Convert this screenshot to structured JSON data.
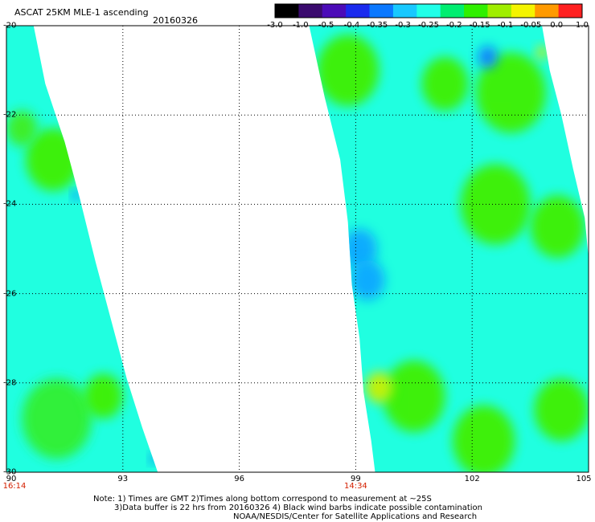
{
  "header": {
    "title": "ASCAT 25KM MLE-1 ascending",
    "date": "20160326"
  },
  "colorbar": {
    "labels": [
      "-3.0",
      "-1.0",
      "-0.5",
      "-0.4",
      "-0.35",
      "-0.3",
      "-0.25",
      "-0.2",
      "-0.15",
      "-0.1",
      "-0.05",
      "0.0",
      "1.0"
    ],
    "colors": [
      "#000000",
      "#3a0a6e",
      "#4b0bb8",
      "#1a2aee",
      "#0a78ff",
      "#18c8ff",
      "#20ffe8",
      "#00ee70",
      "#30f000",
      "#a0ee00",
      "#f4f400",
      "#ff9a00",
      "#ff2020"
    ]
  },
  "map": {
    "lon_range": [
      90,
      105
    ],
    "lat_range": [
      -30,
      -20
    ],
    "lon_ticks": [
      "90",
      "93",
      "96",
      "99",
      "102",
      "105"
    ],
    "lat_ticks": [
      "-20",
      "-22",
      "-24",
      "-26",
      "-28",
      "-30"
    ],
    "pass_times": [
      {
        "lon": 90,
        "label": "16:14"
      },
      {
        "lon": 99,
        "label": "14:34"
      }
    ],
    "swath_fill": "#20ffe0",
    "swaths": [
      {
        "name": "west-swath",
        "left_edge": [
          [
            90.0,
            -20.0
          ],
          [
            90.0,
            -30.0
          ]
        ],
        "right_edge": [
          [
            90.7,
            -20.0
          ],
          [
            91.0,
            -21.3
          ],
          [
            91.5,
            -22.6
          ],
          [
            91.9,
            -23.9
          ],
          [
            92.3,
            -25.3
          ],
          [
            92.7,
            -26.6
          ],
          [
            93.1,
            -27.9
          ],
          [
            93.5,
            -29.0
          ],
          [
            93.9,
            -30.0
          ]
        ]
      },
      {
        "name": "east-swath",
        "left_edge": [
          [
            97.8,
            -20.0
          ],
          [
            98.2,
            -21.6
          ],
          [
            98.6,
            -23.0
          ],
          [
            98.8,
            -24.4
          ],
          [
            98.9,
            -25.8
          ],
          [
            99.1,
            -27.0
          ],
          [
            99.2,
            -28.2
          ],
          [
            99.4,
            -29.3
          ],
          [
            99.5,
            -30.0
          ]
        ],
        "right_edge": [
          [
            103.8,
            -20.0
          ],
          [
            104.0,
            -21.0
          ],
          [
            104.3,
            -22.0
          ],
          [
            104.6,
            -23.2
          ],
          [
            104.9,
            -24.3
          ],
          [
            105.0,
            -25.2
          ],
          [
            105.0,
            -30.0
          ]
        ]
      }
    ],
    "patches": [
      {
        "lon": 91.2,
        "lat": -23.0,
        "r": 0.7,
        "color": "#40f000"
      },
      {
        "lon": 90.4,
        "lat": -22.3,
        "r": 0.4,
        "color": "#40ee20"
      },
      {
        "lon": 91.3,
        "lat": -28.8,
        "r": 0.9,
        "color": "#30f030"
      },
      {
        "lon": 92.5,
        "lat": -28.3,
        "r": 0.5,
        "color": "#40f000"
      },
      {
        "lon": 98.8,
        "lat": -21.0,
        "r": 0.8,
        "color": "#40f000"
      },
      {
        "lon": 101.3,
        "lat": -21.3,
        "r": 0.6,
        "color": "#40f000"
      },
      {
        "lon": 103.0,
        "lat": -21.5,
        "r": 0.9,
        "color": "#40f000"
      },
      {
        "lon": 102.6,
        "lat": -24.0,
        "r": 0.9,
        "color": "#40f000"
      },
      {
        "lon": 104.2,
        "lat": -24.5,
        "r": 0.7,
        "color": "#40f000"
      },
      {
        "lon": 100.5,
        "lat": -28.3,
        "r": 0.8,
        "color": "#40f000"
      },
      {
        "lon": 104.3,
        "lat": -28.6,
        "r": 0.7,
        "color": "#40f000"
      },
      {
        "lon": 102.3,
        "lat": -29.3,
        "r": 0.8,
        "color": "#40f000"
      },
      {
        "lon": 99.6,
        "lat": -28.1,
        "r": 0.35,
        "color": "#c8f000"
      },
      {
        "lon": 99.1,
        "lat": -25.0,
        "r": 0.45,
        "color": "#10a8ff"
      },
      {
        "lon": 99.3,
        "lat": -25.7,
        "r": 0.45,
        "color": "#10a8ff"
      },
      {
        "lon": 102.4,
        "lat": -20.7,
        "r": 0.25,
        "color": "#1080ff"
      },
      {
        "lon": 91.8,
        "lat": -23.8,
        "r": 0.1,
        "color": "#1060ff"
      },
      {
        "lon": 93.8,
        "lat": -29.7,
        "r": 0.1,
        "color": "#1060ff"
      },
      {
        "lon": 103.8,
        "lat": -20.6,
        "r": 0.15,
        "color": "#c8f000"
      }
    ]
  },
  "notes": {
    "line1": "Note: 1) Times are GMT 2)Times along bottom correspond to measurement at ~25S",
    "line2": "3)Data buffer is 22 hrs from 20160326 4) Black wind barbs indicate possible contamination",
    "credit": "NOAA/NESDIS/Center for Satellite Applications and Research"
  }
}
